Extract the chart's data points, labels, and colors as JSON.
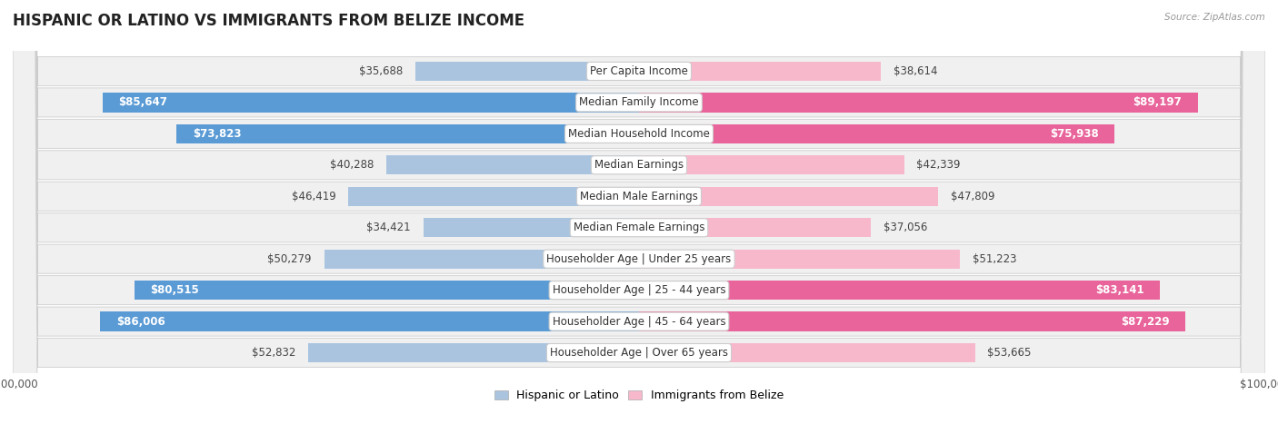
{
  "title": "HISPANIC OR LATINO VS IMMIGRANTS FROM BELIZE INCOME",
  "source": "Source: ZipAtlas.com",
  "categories": [
    "Per Capita Income",
    "Median Family Income",
    "Median Household Income",
    "Median Earnings",
    "Median Male Earnings",
    "Median Female Earnings",
    "Householder Age | Under 25 years",
    "Householder Age | 25 - 44 years",
    "Householder Age | 45 - 64 years",
    "Householder Age | Over 65 years"
  ],
  "hispanic_values": [
    35688,
    85647,
    73823,
    40288,
    46419,
    34421,
    50279,
    80515,
    86006,
    52832
  ],
  "belize_values": [
    38614,
    89197,
    75938,
    42339,
    47809,
    37056,
    51223,
    83141,
    87229,
    53665
  ],
  "hispanic_labels": [
    "$35,688",
    "$85,647",
    "$73,823",
    "$40,288",
    "$46,419",
    "$34,421",
    "$50,279",
    "$80,515",
    "$86,006",
    "$52,832"
  ],
  "belize_labels": [
    "$38,614",
    "$89,197",
    "$75,938",
    "$42,339",
    "$47,809",
    "$37,056",
    "$51,223",
    "$83,141",
    "$87,229",
    "$53,665"
  ],
  "max_value": 100000,
  "hispanic_color_light": "#aac4e0",
  "hispanic_color_dark": "#5b9bd5",
  "belize_color_light": "#f7b8cc",
  "belize_color_dark": "#e8649a",
  "row_bg": "#f0f0f0",
  "bar_height": 0.62,
  "label_fontsize": 8.5,
  "cat_fontsize": 8.5,
  "title_fontsize": 12,
  "axis_label_fontsize": 8.5,
  "inside_threshold": 55000,
  "inside_label_color": "#ffffff",
  "outside_label_color": "#444444"
}
